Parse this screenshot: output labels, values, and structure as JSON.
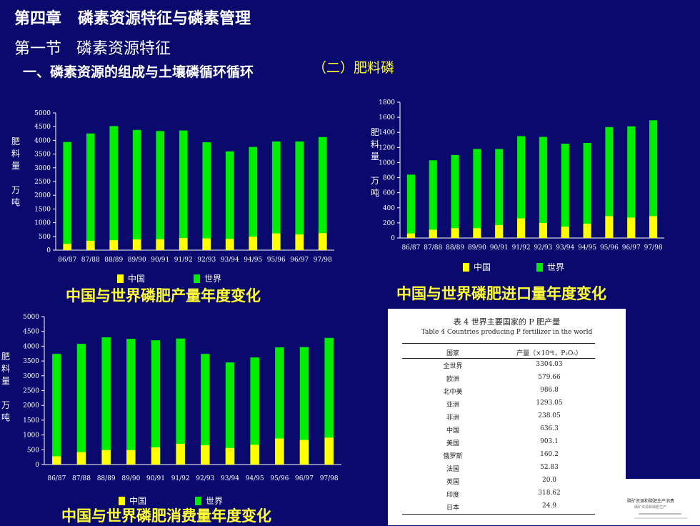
{
  "header": {
    "chapter": "第四章   磷素资源特征与磷素管理",
    "section": "第一节   磷素资源特征",
    "subsection": "一、磷素资源的组成与土壤磷循环循环",
    "subtitle": "（二）肥料磷"
  },
  "colors": {
    "background": "#0a0a6e",
    "china": "#ffff00",
    "world": "#00ee00",
    "title": "#ffff33"
  },
  "legend": {
    "china": "中国",
    "world": "世界"
  },
  "ylabel": [
    "肥",
    "料",
    "量",
    "",
    "万",
    "吨"
  ],
  "chart_data": [
    {
      "type": "bar",
      "title": "中国与世界磷肥产量年度变化",
      "ylabel": "肥料量 万吨",
      "categories": [
        "86/87",
        "87/88",
        "88/89",
        "89/90",
        "90/91",
        "91/92",
        "92/93",
        "93/94",
        "94/95",
        "95/96",
        "96/97",
        "97/98"
      ],
      "series": [
        {
          "name": "中国",
          "values": [
            230,
            340,
            360,
            390,
            400,
            440,
            430,
            410,
            490,
            610,
            570,
            620
          ]
        },
        {
          "name": "世界",
          "values": [
            3940,
            4250,
            4520,
            4380,
            4340,
            4360,
            3930,
            3600,
            3760,
            3960,
            3960,
            4120
          ]
        }
      ],
      "ylim": [
        0,
        5000
      ],
      "yticks": [
        0,
        500,
        1000,
        1500,
        2000,
        2500,
        3000,
        3500,
        4000,
        4500,
        5000
      ]
    },
    {
      "type": "bar",
      "title": "中国与世界磷肥进口量年度变化",
      "ylabel": "肥料量 万吨",
      "categories": [
        "86/87",
        "87/88",
        "88/89",
        "89/90",
        "90/91",
        "91/92",
        "92/93",
        "93/94",
        "94/95",
        "95/96",
        "96/97",
        "97/98"
      ],
      "series": [
        {
          "name": "中国",
          "values": [
            60,
            110,
            130,
            130,
            170,
            260,
            200,
            150,
            190,
            290,
            270,
            290
          ]
        },
        {
          "name": "世界",
          "values": [
            840,
            1030,
            1100,
            1180,
            1180,
            1350,
            1340,
            1250,
            1260,
            1470,
            1480,
            1560
          ]
        }
      ],
      "ylim": [
        0,
        1800
      ],
      "yticks": [
        0,
        200,
        400,
        600,
        800,
        1000,
        1200,
        1400,
        1600,
        1800
      ]
    },
    {
      "type": "bar",
      "title": "中国与世界磷肥消费量年度变化",
      "ylabel": "肥料量 万吨",
      "categories": [
        "86/87",
        "87/88",
        "88/89",
        "89/90",
        "90/91",
        "91/92",
        "92/93",
        "93/94",
        "94/95",
        "95/96",
        "96/97",
        "97/98"
      ],
      "series": [
        {
          "name": "中国",
          "values": [
            280,
            420,
            490,
            490,
            580,
            700,
            650,
            560,
            670,
            880,
            830,
            910
          ]
        },
        {
          "name": "世界",
          "values": [
            3740,
            4080,
            4300,
            4250,
            4200,
            4260,
            3740,
            3450,
            3620,
            3960,
            3970,
            4280
          ]
        }
      ],
      "ylim": [
        0,
        5000
      ],
      "yticks": [
        0,
        500,
        1000,
        1500,
        2000,
        2500,
        3000,
        3500,
        4000,
        4500,
        5000
      ]
    }
  ],
  "table": {
    "caption_cn": "表 4    世界主要国家的 P 肥产量",
    "caption_en": "Table 4   Countries producing P fertilizer in the world",
    "headers": [
      "国家",
      "产量（×10⁴t，P₂O₅）"
    ],
    "rows": [
      [
        "全世界",
        "3304.03"
      ],
      [
        "欧洲",
        "579.66"
      ],
      [
        "北中美",
        "986.8"
      ],
      [
        "亚洲",
        "1293.05"
      ],
      [
        "非洲",
        "238.05"
      ],
      [
        "中国",
        "636.3"
      ],
      [
        "美国",
        "903.1"
      ],
      [
        "俄罗斯",
        "160.2"
      ],
      [
        "法国",
        "52.83"
      ],
      [
        "英国",
        "20.0"
      ],
      [
        "印度",
        "318.62"
      ],
      [
        "日本",
        "24.9"
      ]
    ]
  },
  "thumbnail": {
    "line1": "磷矿资源和磷肥生产消费",
    "line2": "磷矿资源和磷肥生产"
  }
}
